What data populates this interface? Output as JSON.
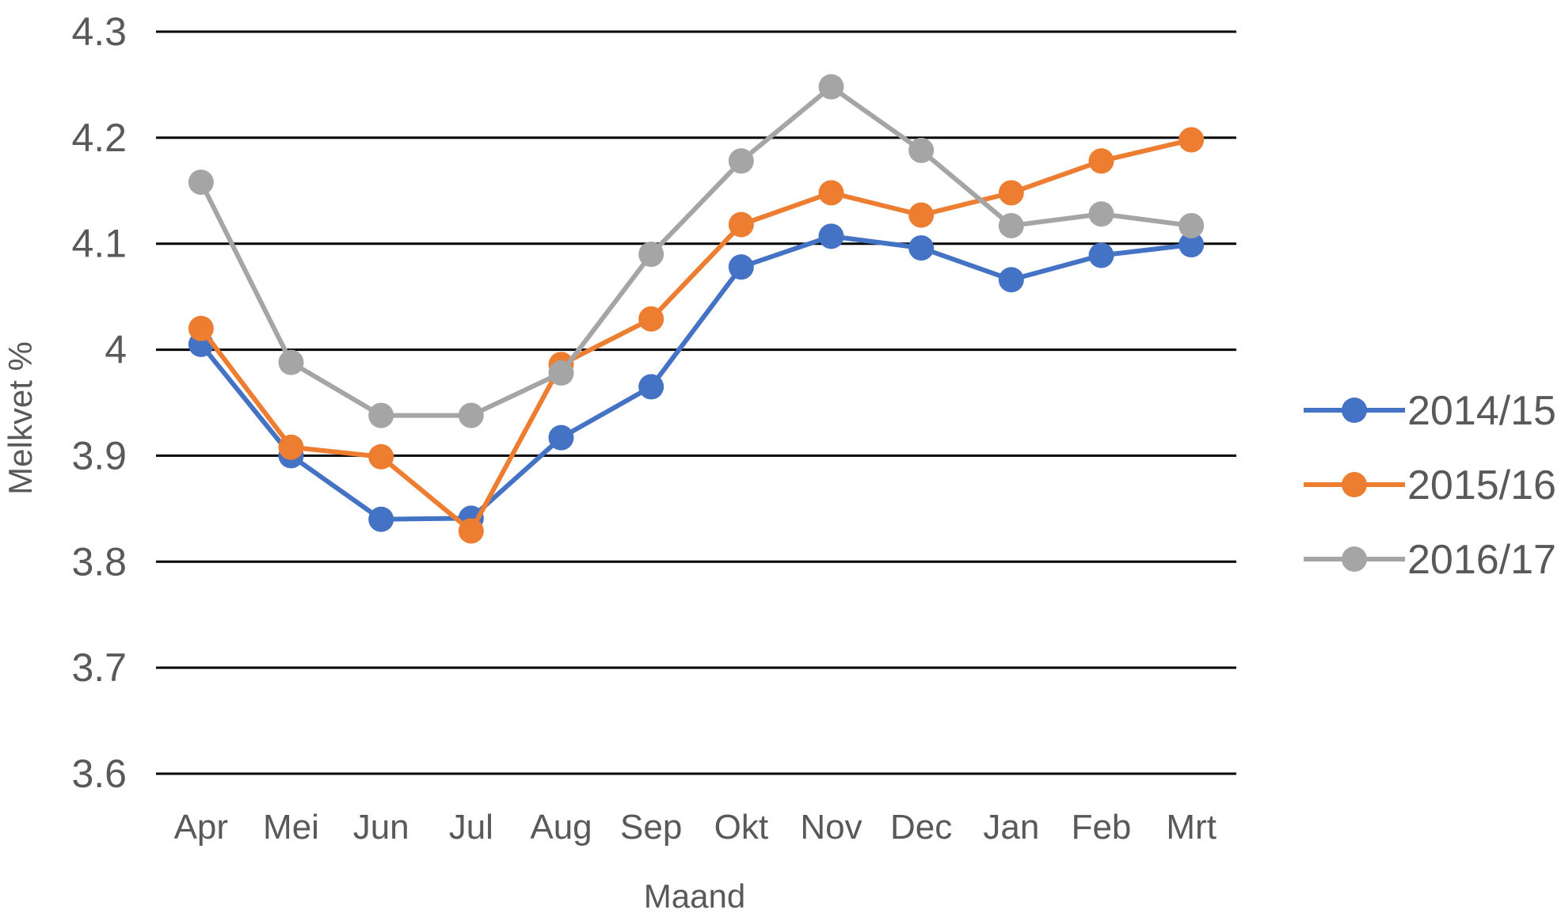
{
  "chart_data": {
    "type": "line",
    "categories": [
      "Apr",
      "Mei",
      "Jun",
      "Jul",
      "Aug",
      "Sep",
      "Okt",
      "Nov",
      "Dec",
      "Jan",
      "Feb",
      "Mrt"
    ],
    "series": [
      {
        "name": "2014/15",
        "color": "#4472C4",
        "values": [
          4.005,
          3.9,
          3.84,
          3.841,
          3.917,
          3.965,
          4.078,
          4.107,
          4.096,
          4.066,
          4.089,
          4.099
        ]
      },
      {
        "name": "2015/16",
        "color": "#ED7D31",
        "values": [
          4.02,
          3.908,
          3.899,
          3.829,
          3.986,
          4.029,
          4.118,
          4.148,
          4.127,
          4.148,
          4.178,
          4.198
        ]
      },
      {
        "name": "2016/17",
        "color": "#A5A5A5",
        "values": [
          4.158,
          3.988,
          3.938,
          3.938,
          3.978,
          4.09,
          4.178,
          4.248,
          4.188,
          4.117,
          4.128,
          4.117
        ]
      }
    ],
    "yticks": [
      "3.6",
      "3.7",
      "3.8",
      "3.9",
      "4",
      "4.1",
      "4.2",
      "4.3"
    ],
    "ylim": [
      3.6,
      4.3
    ],
    "xlabel": "Maand",
    "ylabel": "Melkvet %",
    "grid": true,
    "legend": "right"
  }
}
